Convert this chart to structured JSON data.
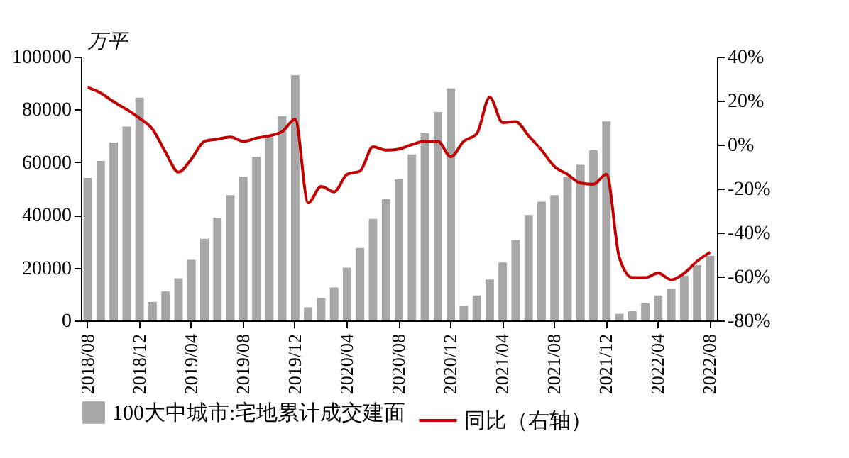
{
  "chart_data": {
    "type": "bar",
    "ylabel": "万平",
    "categories": [
      "2018/08",
      null,
      null,
      null,
      "2018/12",
      null,
      null,
      null,
      "2019/04",
      null,
      null,
      null,
      "2019/08",
      null,
      null,
      null,
      "2019/12",
      null,
      null,
      null,
      "2020/04",
      null,
      null,
      null,
      "2020/08",
      null,
      null,
      null,
      "2020/12",
      null,
      null,
      null,
      "2021/04",
      null,
      null,
      null,
      "2021/08",
      null,
      null,
      null,
      "2021/12",
      null,
      null,
      null,
      "2022/04",
      null,
      null,
      null,
      "2022/08"
    ],
    "series": [
      {
        "name": "100大中城市:宅地累计成交建面",
        "color": "#a6a6a6",
        "values": [
          54000,
          60500,
          67500,
          73500,
          84500,
          7000,
          11000,
          16000,
          23000,
          31000,
          39000,
          47500,
          54500,
          62000,
          69500,
          77500,
          93000,
          5000,
          8500,
          12500,
          20000,
          27500,
          38500,
          46000,
          53500,
          63000,
          71000,
          79000,
          88000,
          5500,
          9500,
          15500,
          22000,
          30500,
          40000,
          45000,
          47500,
          54500,
          59000,
          64500,
          75500,
          2500,
          3500,
          6500,
          9500,
          12000,
          17000,
          21000,
          24500
        ]
      },
      {
        "name": "同比（右轴）",
        "type": "line",
        "axis": "y2",
        "color": "#c00000",
        "values": [
          26,
          23.5,
          19.5,
          16,
          12,
          7,
          -3.5,
          -12.5,
          -6.5,
          1.5,
          2.5,
          3.5,
          1.5,
          3,
          4,
          6,
          11.5,
          -26.5,
          -19,
          -21.5,
          -13.5,
          -12,
          -1,
          -2.5,
          -2,
          0,
          1.5,
          1.5,
          -5.5,
          1.5,
          5,
          21.5,
          10,
          10.5,
          4,
          -2.5,
          -10,
          -13.5,
          -17.5,
          -18,
          -13.5,
          -51.5,
          -60.5,
          -60.5,
          -58.5,
          -61.5,
          -58.5,
          -53,
          -49
        ]
      }
    ],
    "ylim": [
      0,
      100000
    ],
    "yticks": [
      0,
      20000,
      40000,
      60000,
      80000,
      100000
    ],
    "y2lim": [
      -80,
      40
    ],
    "y2ticks": [
      {
        "value": -80,
        "label": "-80%"
      },
      {
        "value": -60,
        "label": "-60%"
      },
      {
        "value": -40,
        "label": "-40%"
      },
      {
        "value": -20,
        "label": "-20%"
      },
      {
        "value": 0,
        "label": "0%"
      },
      {
        "value": 20,
        "label": "20%"
      },
      {
        "value": 40,
        "label": "40%"
      }
    ],
    "grid": false,
    "legend": "bottom"
  }
}
